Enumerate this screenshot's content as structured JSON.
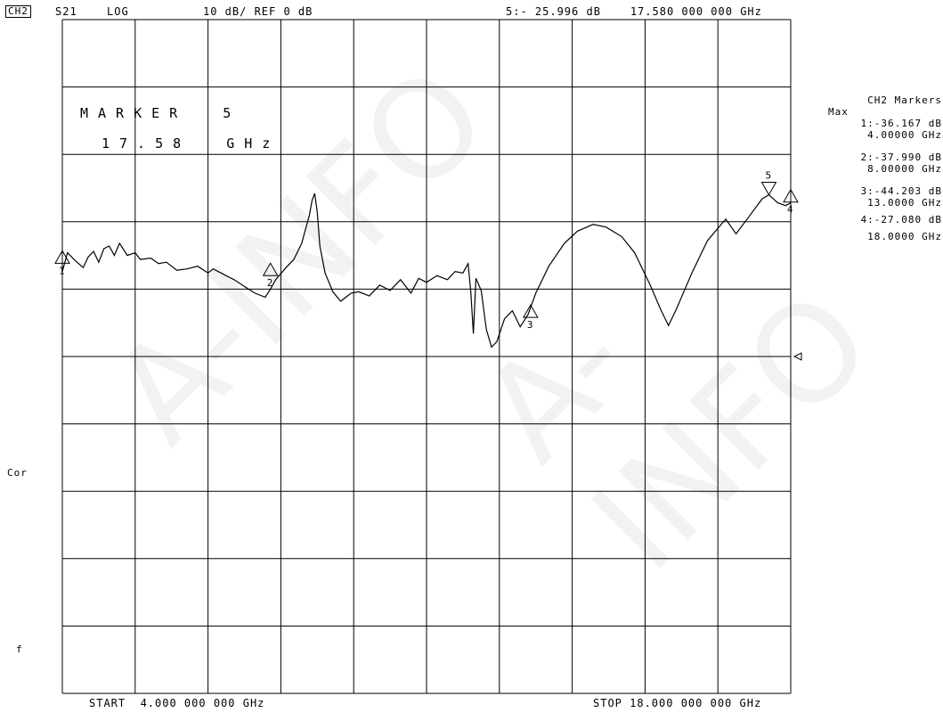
{
  "header": {
    "channel": "CH2",
    "parameter": "S21",
    "format": "LOG",
    "scale": "10 dB/ REF 0 dB",
    "active_marker_readout": "5:- 25.996 dB    17.580 000 000 GHz"
  },
  "marker_callout": {
    "line1": "MARKER  5",
    "line2": "17.58  GHz"
  },
  "marker_list": {
    "title": "CH2 Markers",
    "subtitle": "Max",
    "entries": [
      {
        "value": "1:-36.167 dB",
        "freq": "4.00000 GHz"
      },
      {
        "value": "2:-37.990 dB",
        "freq": "8.00000 GHz"
      },
      {
        "value": "3:-44.203 dB",
        "freq": "13.0000 GHz"
      },
      {
        "value": "4:-27.080 dB",
        "freq": "18.0000 GHz"
      }
    ]
  },
  "side_labels": {
    "cor": "Cor",
    "f": "f"
  },
  "footer": {
    "start": "START  4.000 000 000 GHz",
    "stop": "STOP 18.000 000 000 GHz"
  },
  "watermark": "A-INFO",
  "chart_data": {
    "type": "line",
    "title": "S21",
    "xlabel": "",
    "ylabel": "",
    "xlim": [
      4.0,
      18.0
    ],
    "ylim": [
      -100,
      0
    ],
    "x_unit": "GHz",
    "y_unit": "dB",
    "grid": true,
    "divisions": {
      "x": 10,
      "y": 10
    },
    "reference_level": -50,
    "series": [
      {
        "values": [
          [
            4.0,
            -37.4
          ],
          [
            4.1,
            -34.6
          ],
          [
            4.25,
            -35.8
          ],
          [
            4.4,
            -36.8
          ],
          [
            4.5,
            -35.2
          ],
          [
            4.6,
            -34.4
          ],
          [
            4.7,
            -36.0
          ],
          [
            4.8,
            -34.0
          ],
          [
            4.9,
            -33.6
          ],
          [
            5.0,
            -35.0
          ],
          [
            5.1,
            -33.2
          ],
          [
            5.25,
            -35.0
          ],
          [
            5.4,
            -34.6
          ],
          [
            5.5,
            -35.6
          ],
          [
            5.7,
            -35.4
          ],
          [
            5.85,
            -36.2
          ],
          [
            6.0,
            -36.0
          ],
          [
            6.2,
            -37.2
          ],
          [
            6.4,
            -37.0
          ],
          [
            6.6,
            -36.6
          ],
          [
            6.8,
            -37.6
          ],
          [
            6.9,
            -37.0
          ],
          [
            7.1,
            -37.8
          ],
          [
            7.3,
            -38.6
          ],
          [
            7.5,
            -39.6
          ],
          [
            7.7,
            -40.6
          ],
          [
            7.9,
            -41.2
          ],
          [
            8.0,
            -40.0
          ],
          [
            8.1,
            -38.6
          ],
          [
            8.3,
            -36.8
          ],
          [
            8.45,
            -35.6
          ],
          [
            8.6,
            -33.2
          ],
          [
            8.7,
            -30.4
          ],
          [
            8.75,
            -29.0
          ],
          [
            8.8,
            -26.8
          ],
          [
            8.85,
            -25.8
          ],
          [
            8.9,
            -28.6
          ],
          [
            8.95,
            -33.6
          ],
          [
            9.05,
            -37.6
          ],
          [
            9.2,
            -40.4
          ],
          [
            9.35,
            -41.8
          ],
          [
            9.55,
            -40.6
          ],
          [
            9.7,
            -40.4
          ],
          [
            9.9,
            -41.0
          ],
          [
            10.1,
            -39.4
          ],
          [
            10.3,
            -40.2
          ],
          [
            10.5,
            -38.6
          ],
          [
            10.7,
            -40.6
          ],
          [
            10.85,
            -38.4
          ],
          [
            11.0,
            -39.0
          ],
          [
            11.2,
            -38.0
          ],
          [
            11.4,
            -38.6
          ],
          [
            11.55,
            -37.4
          ],
          [
            11.7,
            -37.6
          ],
          [
            11.8,
            -36.2
          ],
          [
            11.85,
            -40.4
          ],
          [
            11.9,
            -46.6
          ],
          [
            11.95,
            -38.4
          ],
          [
            12.05,
            -40.2
          ],
          [
            12.15,
            -46.0
          ],
          [
            12.25,
            -48.6
          ],
          [
            12.35,
            -47.8
          ],
          [
            12.5,
            -44.4
          ],
          [
            12.65,
            -43.2
          ],
          [
            12.8,
            -45.6
          ],
          [
            12.95,
            -43.8
          ],
          [
            13.1,
            -40.6
          ],
          [
            13.35,
            -36.6
          ],
          [
            13.65,
            -33.2
          ],
          [
            13.9,
            -31.4
          ],
          [
            14.2,
            -30.4
          ],
          [
            14.45,
            -30.8
          ],
          [
            14.75,
            -32.2
          ],
          [
            15.0,
            -34.6
          ],
          [
            15.3,
            -39.4
          ],
          [
            15.5,
            -43.0
          ],
          [
            15.65,
            -45.4
          ],
          [
            15.8,
            -43.0
          ],
          [
            16.1,
            -37.6
          ],
          [
            16.4,
            -32.8
          ],
          [
            16.75,
            -29.6
          ],
          [
            16.95,
            -31.8
          ],
          [
            17.2,
            -29.2
          ],
          [
            17.45,
            -26.6
          ],
          [
            17.58,
            -26.0
          ],
          [
            17.75,
            -27.2
          ],
          [
            17.9,
            -27.6
          ],
          [
            18.0,
            -27.2
          ]
        ]
      }
    ],
    "markers": [
      {
        "id": "1",
        "x": 4.0,
        "y": -36.167,
        "shape": "up"
      },
      {
        "id": "2",
        "x": 8.0,
        "y": -37.99,
        "shape": "up"
      },
      {
        "id": "3",
        "x": 13.0,
        "y": -44.203,
        "shape": "up"
      },
      {
        "id": "4",
        "x": 18.0,
        "y": -27.08,
        "shape": "up"
      },
      {
        "id": "5",
        "x": 17.58,
        "y": -25.996,
        "shape": "down"
      }
    ]
  }
}
